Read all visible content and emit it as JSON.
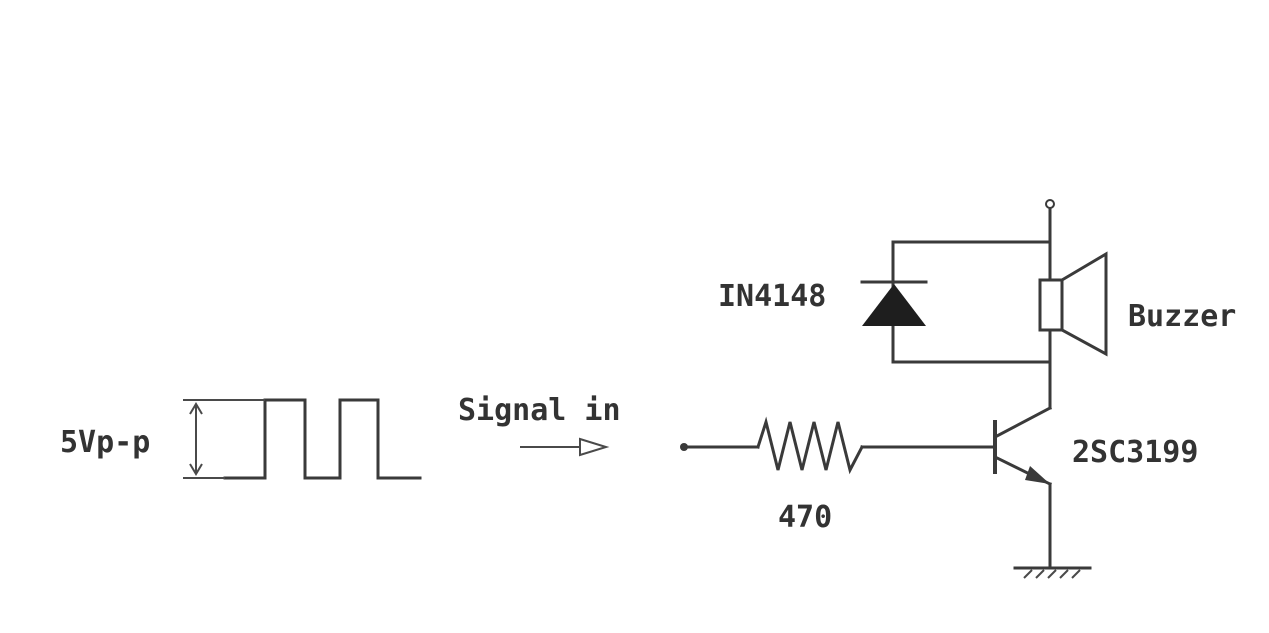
{
  "labels": {
    "amplitude": "5Vp-p",
    "signal_in": "Signal in",
    "diode": "IN4148",
    "buzzer": "Buzzer",
    "resistor": "470",
    "transistor": "2SC3199"
  },
  "colors": {
    "line": "#3a3a3a",
    "text": "#333333",
    "background": "#ffffff"
  }
}
